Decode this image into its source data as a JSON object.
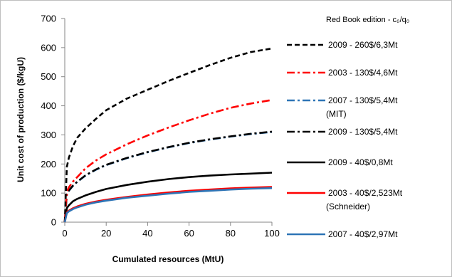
{
  "chart_data": {
    "type": "line",
    "title": "",
    "xlabel": "Cumulated resources (MtU)",
    "ylabel": "Unit cost of production ($/kgU)",
    "xlim": [
      0,
      100
    ],
    "ylim": [
      0,
      700
    ],
    "xticks": [
      0,
      20,
      40,
      60,
      80,
      100
    ],
    "yticks": [
      0,
      100,
      200,
      300,
      400,
      500,
      600,
      700
    ],
    "grid": false,
    "legend_title": "Red Book edition - c₀/q₀",
    "legend_position": "right",
    "series": [
      {
        "name": "2009 - 260$/6,3Mt",
        "color": "#000000",
        "dash": "dash",
        "x": [
          0,
          1,
          2,
          4,
          6,
          10,
          15,
          20,
          30,
          40,
          50,
          60,
          70,
          80,
          90,
          100
        ],
        "y": [
          0,
          190,
          222,
          262,
          290,
          322,
          355,
          385,
          425,
          455,
          485,
          513,
          540,
          565,
          585,
          597
        ]
      },
      {
        "name": "2003 - 130$/4,6Mt",
        "color": "#ff0000",
        "dash": "dashdot",
        "x": [
          0,
          1,
          2,
          4,
          6,
          10,
          15,
          20,
          30,
          40,
          50,
          60,
          70,
          80,
          90,
          100
        ],
        "y": [
          0,
          105,
          120,
          140,
          155,
          185,
          212,
          233,
          268,
          298,
          325,
          350,
          373,
          393,
          408,
          420
        ]
      },
      {
        "name": "2007 - 130$/5,4Mt (MIT)",
        "color": "#2e75b6",
        "dash": "dashdot",
        "x": [
          0,
          1,
          2,
          4,
          6,
          10,
          15,
          20,
          30,
          40,
          50,
          60,
          70,
          80,
          90,
          100
        ],
        "y": [
          0,
          95,
          108,
          125,
          138,
          160,
          180,
          196,
          220,
          240,
          257,
          272,
          284,
          294,
          303,
          310
        ]
      },
      {
        "name": "2009 - 130$/5,4Mt",
        "color": "#000000",
        "dash": "dashdot",
        "x": [
          0,
          1,
          2,
          4,
          6,
          10,
          15,
          20,
          30,
          40,
          50,
          60,
          70,
          80,
          90,
          100
        ],
        "y": [
          0,
          96,
          109,
          126,
          139,
          161,
          181,
          197,
          221,
          241,
          258,
          273,
          285,
          295,
          304,
          311
        ]
      },
      {
        "name": "2009 - 40$/0,8Mt",
        "color": "#000000",
        "dash": "solid",
        "x": [
          0,
          1,
          2,
          4,
          6,
          10,
          15,
          20,
          30,
          40,
          50,
          60,
          70,
          80,
          90,
          100
        ],
        "y": [
          0,
          48,
          58,
          72,
          80,
          92,
          104,
          114,
          128,
          139,
          148,
          155,
          160,
          164,
          167,
          170
        ]
      },
      {
        "name": "2003 - 40$/2,523Mt (Schneider)",
        "color": "#ff0000",
        "dash": "solid",
        "x": [
          0,
          1,
          2,
          4,
          6,
          10,
          15,
          20,
          30,
          40,
          50,
          60,
          70,
          80,
          90,
          100
        ],
        "y": [
          0,
          34,
          40,
          48,
          54,
          63,
          71,
          77,
          87,
          95,
          102,
          108,
          112,
          116,
          119,
          121
        ]
      },
      {
        "name": "2007 - 40$/2,97Mt",
        "color": "#2e75b6",
        "dash": "solid",
        "x": [
          0,
          1,
          2,
          4,
          6,
          10,
          15,
          20,
          30,
          40,
          50,
          60,
          70,
          80,
          90,
          100
        ],
        "y": [
          0,
          31,
          37,
          45,
          51,
          60,
          68,
          74,
          84,
          91,
          98,
          104,
          108,
          112,
          115,
          117
        ]
      }
    ]
  }
}
